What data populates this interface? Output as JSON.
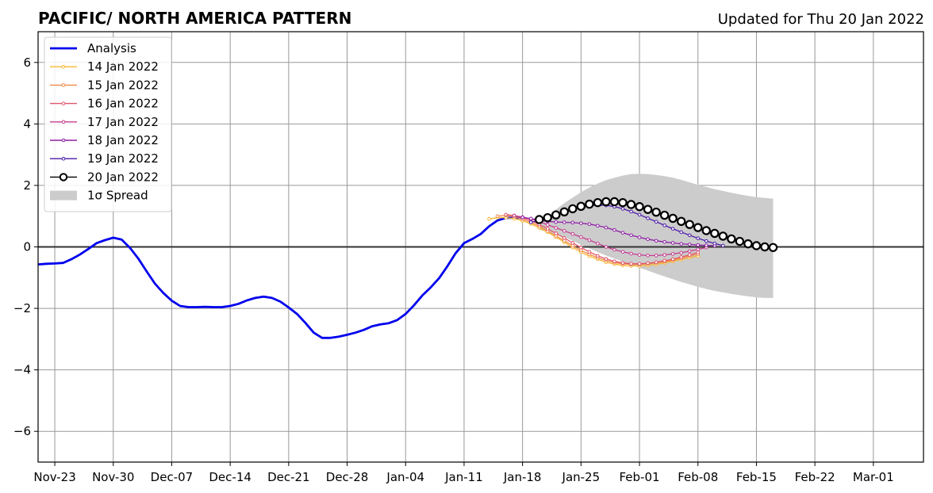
{
  "header": {
    "title": "PACIFIC/ NORTH AMERICA PATTERN",
    "updated": "Updated for Thu 20 Jan 2022"
  },
  "colors": {
    "analysis": "#0000ee",
    "zero_line": "#333333",
    "grid": "#999999",
    "spread": "#cccccc",
    "fc_20jan_face": "#ffffff",
    "fc_20jan_edge": "#000000"
  },
  "chart_data": {
    "type": "line",
    "title": "PACIFIC/ NORTH AMERICA PATTERN",
    "subtitle": "Updated for Thu 20 Jan 2022",
    "xlim": [
      "2021-11-21",
      "2022-03-07"
    ],
    "ylim": [
      -7,
      7
    ],
    "xticks": [
      "Nov-23",
      "Nov-30",
      "Dec-07",
      "Dec-14",
      "Dec-21",
      "Dec-28",
      "Jan-04",
      "Jan-11",
      "Jan-18",
      "Jan-25",
      "Feb-01",
      "Feb-08",
      "Feb-15",
      "Feb-22",
      "Mar-01"
    ],
    "xtick_dates": [
      "2021-11-23",
      "2021-11-30",
      "2021-12-07",
      "2021-12-14",
      "2021-12-21",
      "2021-12-28",
      "2022-01-04",
      "2022-01-11",
      "2022-01-18",
      "2022-01-25",
      "2022-02-01",
      "2022-02-08",
      "2022-02-15",
      "2022-02-22",
      "2022-03-01"
    ],
    "yticks": [
      -6,
      -4,
      -2,
      0,
      2,
      4,
      6
    ],
    "ytick_labels": [
      "−6",
      "−4",
      "−2",
      "0",
      "2",
      "4",
      "6"
    ],
    "grid": true,
    "legend_position": "top-left",
    "analysis": {
      "name": "Analysis",
      "start": "2021-11-21",
      "values": [
        -0.57,
        -0.55,
        -0.54,
        -0.52,
        -0.4,
        -0.25,
        -0.07,
        0.12,
        0.22,
        0.3,
        0.24,
        -0.03,
        -0.38,
        -0.8,
        -1.2,
        -1.5,
        -1.75,
        -1.92,
        -1.96,
        -1.96,
        -1.95,
        -1.96,
        -1.96,
        -1.92,
        -1.85,
        -1.74,
        -1.66,
        -1.62,
        -1.66,
        -1.78,
        -1.97,
        -2.18,
        -2.47,
        -2.79,
        -2.96,
        -2.96,
        -2.92,
        -2.86,
        -2.79,
        -2.7,
        -2.58,
        -2.52,
        -2.48,
        -2.38,
        -2.18,
        -1.9,
        -1.58,
        -1.32,
        -1.02,
        -0.63,
        -0.2,
        0.12,
        0.26,
        0.42,
        0.67,
        0.86,
        0.94,
        0.95,
        0.94
      ]
    },
    "forecasts": [
      {
        "name": "14 Jan 2022",
        "color": "#f7b731",
        "start": "2022-01-14",
        "values": [
          0.91,
          0.95,
          0.95,
          0.92,
          0.85,
          0.75,
          0.62,
          0.48,
          0.32,
          0.15,
          -0.02,
          -0.17,
          -0.3,
          -0.4,
          -0.5,
          -0.56,
          -0.6,
          -0.62,
          -0.62,
          -0.6,
          -0.57,
          -0.52,
          -0.47,
          -0.41,
          -0.35,
          -0.3
        ]
      },
      {
        "name": "15 Jan 2022",
        "color": "#f08a4b",
        "start": "2022-01-15",
        "values": [
          1.0,
          1.02,
          0.98,
          0.9,
          0.8,
          0.67,
          0.52,
          0.36,
          0.2,
          0.04,
          -0.11,
          -0.24,
          -0.35,
          -0.44,
          -0.51,
          -0.55,
          -0.57,
          -0.57,
          -0.55,
          -0.52,
          -0.48,
          -0.43,
          -0.37,
          -0.3,
          -0.24
        ]
      },
      {
        "name": "16 Jan 2022",
        "color": "#e0566a",
        "start": "2022-01-16",
        "values": [
          1.05,
          1.02,
          0.95,
          0.85,
          0.73,
          0.59,
          0.44,
          0.29,
          0.13,
          -0.02,
          -0.16,
          -0.29,
          -0.39,
          -0.47,
          -0.52,
          -0.55,
          -0.55,
          -0.53,
          -0.5,
          -0.45,
          -0.4,
          -0.33,
          -0.26,
          -0.18
        ]
      },
      {
        "name": "17 Jan 2022",
        "color": "#c43d8e",
        "start": "2022-01-17",
        "values": [
          1.02,
          0.97,
          0.91,
          0.82,
          0.72,
          0.62,
          0.52,
          0.42,
          0.32,
          0.22,
          0.11,
          0.0,
          -0.09,
          -0.16,
          -0.22,
          -0.26,
          -0.28,
          -0.28,
          -0.26,
          -0.23,
          -0.19,
          -0.14,
          -0.08,
          -0.02
        ]
      },
      {
        "name": "18 Jan 2022",
        "color": "#8e1fa6",
        "start": "2022-01-18",
        "values": [
          0.96,
          0.92,
          0.87,
          0.83,
          0.81,
          0.8,
          0.79,
          0.77,
          0.74,
          0.69,
          0.63,
          0.55,
          0.46,
          0.38,
          0.31,
          0.25,
          0.2,
          0.16,
          0.13,
          0.1,
          0.08,
          0.06,
          0.05,
          0.04
        ]
      },
      {
        "name": "19 Jan 2022",
        "color": "#4b1aa8",
        "start": "2022-01-19",
        "values": [
          0.8,
          0.86,
          0.94,
          1.04,
          1.14,
          1.23,
          1.3,
          1.34,
          1.36,
          1.35,
          1.31,
          1.24,
          1.15,
          1.05,
          0.93,
          0.82,
          0.7,
          0.59,
          0.48,
          0.38,
          0.28,
          0.19,
          0.11,
          0.04
        ]
      },
      {
        "name": "20 Jan 2022",
        "color": "#000000",
        "start": "2022-01-20",
        "values": [
          0.89,
          0.95,
          1.04,
          1.14,
          1.24,
          1.32,
          1.39,
          1.44,
          1.47,
          1.47,
          1.44,
          1.38,
          1.31,
          1.22,
          1.13,
          1.03,
          0.93,
          0.83,
          0.73,
          0.63,
          0.53,
          0.44,
          0.35,
          0.26,
          0.18,
          0.1,
          0.04,
          0.0,
          -0.02
        ]
      }
    ],
    "spread": {
      "name": "1σ Spread",
      "start": "2022-01-20",
      "upper": [
        0.75,
        1.0,
        1.22,
        1.42,
        1.6,
        1.78,
        1.93,
        2.06,
        2.17,
        2.25,
        2.32,
        2.37,
        2.38,
        2.37,
        2.34,
        2.3,
        2.25,
        2.18,
        2.1,
        2.02,
        1.95,
        1.88,
        1.82,
        1.76,
        1.71,
        1.66,
        1.62,
        1.59,
        1.57
      ],
      "lower": [
        0.55,
        0.5,
        0.42,
        0.32,
        0.2,
        0.07,
        -0.05,
        -0.17,
        -0.28,
        -0.38,
        -0.48,
        -0.58,
        -0.68,
        -0.77,
        -0.87,
        -0.96,
        -1.05,
        -1.14,
        -1.22,
        -1.3,
        -1.37,
        -1.43,
        -1.48,
        -1.53,
        -1.57,
        -1.61,
        -1.64,
        -1.66,
        -1.66
      ]
    },
    "legend": [
      "Analysis",
      "14 Jan 2022",
      "15 Jan 2022",
      "16 Jan 2022",
      "17 Jan 2022",
      "18 Jan 2022",
      "19 Jan 2022",
      "20 Jan 2022",
      "1σ Spread"
    ]
  }
}
